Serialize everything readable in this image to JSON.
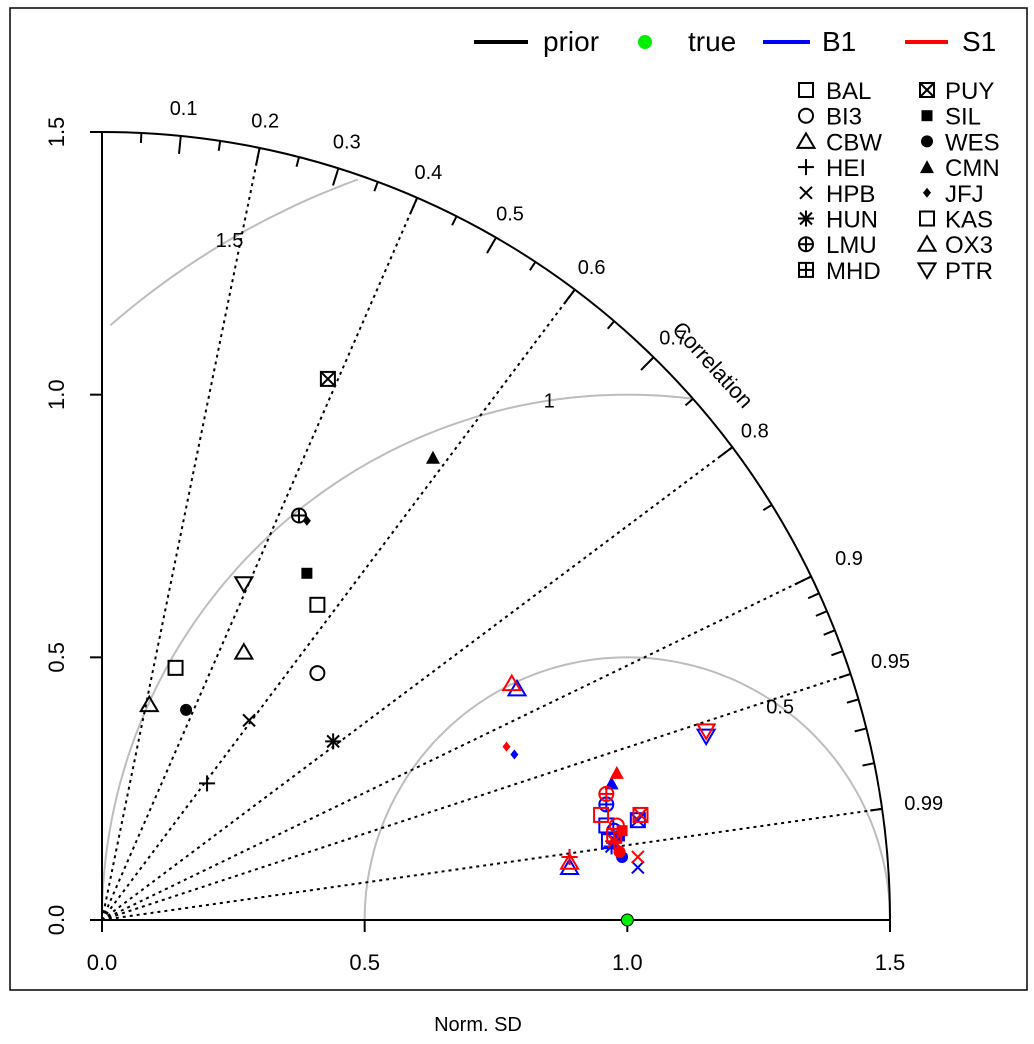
{
  "chart_data": {
    "type": "scatter",
    "subtype": "taylor-diagram",
    "title": "",
    "xlabel": "Norm. SD",
    "ylabel": "",
    "xlim": [
      0,
      1.5
    ],
    "ylim": [
      0,
      1.5
    ],
    "x_ticks": [
      "0.0",
      "0.5",
      "1.0",
      "1.5"
    ],
    "y_ticks": [
      "0.0",
      "0.5",
      "1.0",
      "1.5"
    ],
    "arc_label": "Correlation",
    "correlation_labels": [
      "0.1",
      "0.2",
      "0.3",
      "0.4",
      "0.5",
      "0.6",
      "0.7",
      "0.8",
      "0.9",
      "0.95",
      "0.99"
    ],
    "correlation_values": [
      0.1,
      0.2,
      0.3,
      0.4,
      0.5,
      0.6,
      0.7,
      0.8,
      0.9,
      0.95,
      0.99
    ],
    "rmsd_contours": [
      {
        "radius": 0.5,
        "label": "0.5"
      },
      {
        "radius": 1.0,
        "label": "1"
      },
      {
        "radius": 1.5,
        "label": "1.5"
      }
    ],
    "legend_placement": "top-right",
    "series_legend": [
      {
        "name": "prior",
        "type": "line",
        "color": "#000000"
      },
      {
        "name": "true",
        "type": "point",
        "color": "#00ee00"
      },
      {
        "name": "B1",
        "type": "line",
        "color": "#0000ff"
      },
      {
        "name": "S1",
        "type": "line",
        "color": "#ff0000"
      }
    ],
    "station_legend": [
      {
        "name": "BAL",
        "symbol": "square"
      },
      {
        "name": "BI3",
        "symbol": "circle"
      },
      {
        "name": "CBW",
        "symbol": "triangle"
      },
      {
        "name": "HEI",
        "symbol": "plus"
      },
      {
        "name": "HPB",
        "symbol": "cross"
      },
      {
        "name": "HUN",
        "symbol": "asterisk"
      },
      {
        "name": "LMU",
        "symbol": "circle-plus"
      },
      {
        "name": "MHD",
        "symbol": "square-plus"
      },
      {
        "name": "PUY",
        "symbol": "square-cross"
      },
      {
        "name": "SIL",
        "symbol": "filled-square"
      },
      {
        "name": "WES",
        "symbol": "filled-circle"
      },
      {
        "name": "CMN",
        "symbol": "filled-triangle"
      },
      {
        "name": "JFJ",
        "symbol": "filled-diamond"
      },
      {
        "name": "KAS",
        "symbol": "square"
      },
      {
        "name": "OX3",
        "symbol": "triangle"
      },
      {
        "name": "PTR",
        "symbol": "triangle-down"
      }
    ],
    "true_point": {
      "x": 1.0,
      "y": 0.0,
      "color": "#00ee00"
    },
    "series": [
      {
        "name": "prior",
        "color": "#000000",
        "points": [
          {
            "station": "BAL",
            "x": 0.14,
            "y": 0.48
          },
          {
            "station": "BI3",
            "x": 0.41,
            "y": 0.47
          },
          {
            "station": "CBW",
            "x": 0.09,
            "y": 0.41
          },
          {
            "station": "HEI",
            "x": 0.2,
            "y": 0.26
          },
          {
            "station": "HPB",
            "x": 0.28,
            "y": 0.38
          },
          {
            "station": "HUN",
            "x": 0.44,
            "y": 0.34
          },
          {
            "station": "LMU",
            "x": 0.375,
            "y": 0.77
          },
          {
            "station": "PUY",
            "x": 0.43,
            "y": 1.03
          },
          {
            "station": "SIL",
            "x": 0.39,
            "y": 0.66
          },
          {
            "station": "WES",
            "x": 0.16,
            "y": 0.4
          },
          {
            "station": "CMN",
            "x": 0.63,
            "y": 0.88
          },
          {
            "station": "JFJ",
            "x": 0.39,
            "y": 0.76
          },
          {
            "station": "KAS",
            "x": 0.41,
            "y": 0.6
          },
          {
            "station": "OX3",
            "x": 0.27,
            "y": 0.51
          },
          {
            "station": "PTR",
            "x": 0.27,
            "y": 0.64
          }
        ]
      },
      {
        "name": "B1",
        "color": "#0000ff",
        "points": [
          {
            "station": "BAL",
            "x": 0.96,
            "y": 0.18
          },
          {
            "station": "BI3",
            "x": 0.975,
            "y": 0.17
          },
          {
            "station": "CBW",
            "x": 0.89,
            "y": 0.1
          },
          {
            "station": "HEI",
            "x": 0.89,
            "y": 0.12
          },
          {
            "station": "HPB",
            "x": 1.02,
            "y": 0.1
          },
          {
            "station": "HUN",
            "x": 0.97,
            "y": 0.14
          },
          {
            "station": "LMU",
            "x": 0.96,
            "y": 0.22
          },
          {
            "station": "PUY",
            "x": 1.02,
            "y": 0.19
          },
          {
            "station": "SIL",
            "x": 0.985,
            "y": 0.16
          },
          {
            "station": "WES",
            "x": 0.99,
            "y": 0.12
          },
          {
            "station": "CMN",
            "x": 0.97,
            "y": 0.26
          },
          {
            "station": "JFJ",
            "x": 0.785,
            "y": 0.315
          },
          {
            "station": "KAS",
            "x": 0.965,
            "y": 0.15
          },
          {
            "station": "OX3",
            "x": 0.79,
            "y": 0.44
          },
          {
            "station": "PTR",
            "x": 1.15,
            "y": 0.35
          }
        ]
      },
      {
        "name": "S1",
        "color": "#ff0000",
        "points": [
          {
            "station": "BAL",
            "x": 0.95,
            "y": 0.2
          },
          {
            "station": "BI3",
            "x": 0.98,
            "y": 0.18
          },
          {
            "station": "CBW",
            "x": 0.89,
            "y": 0.11
          },
          {
            "station": "HEI",
            "x": 0.89,
            "y": 0.12
          },
          {
            "station": "HPB",
            "x": 1.02,
            "y": 0.12
          },
          {
            "station": "HUN",
            "x": 0.975,
            "y": 0.15
          },
          {
            "station": "LMU",
            "x": 0.96,
            "y": 0.24
          },
          {
            "station": "PUY",
            "x": 1.025,
            "y": 0.2
          },
          {
            "station": "SIL",
            "x": 0.99,
            "y": 0.17
          },
          {
            "station": "WES",
            "x": 0.985,
            "y": 0.13
          },
          {
            "station": "CMN",
            "x": 0.98,
            "y": 0.28
          },
          {
            "station": "JFJ",
            "x": 0.77,
            "y": 0.33
          },
          {
            "station": "KAS",
            "x": 0.975,
            "y": 0.16
          },
          {
            "station": "OX3",
            "x": 0.78,
            "y": 0.45
          },
          {
            "station": "PTR",
            "x": 1.15,
            "y": 0.36
          }
        ]
      }
    ]
  }
}
